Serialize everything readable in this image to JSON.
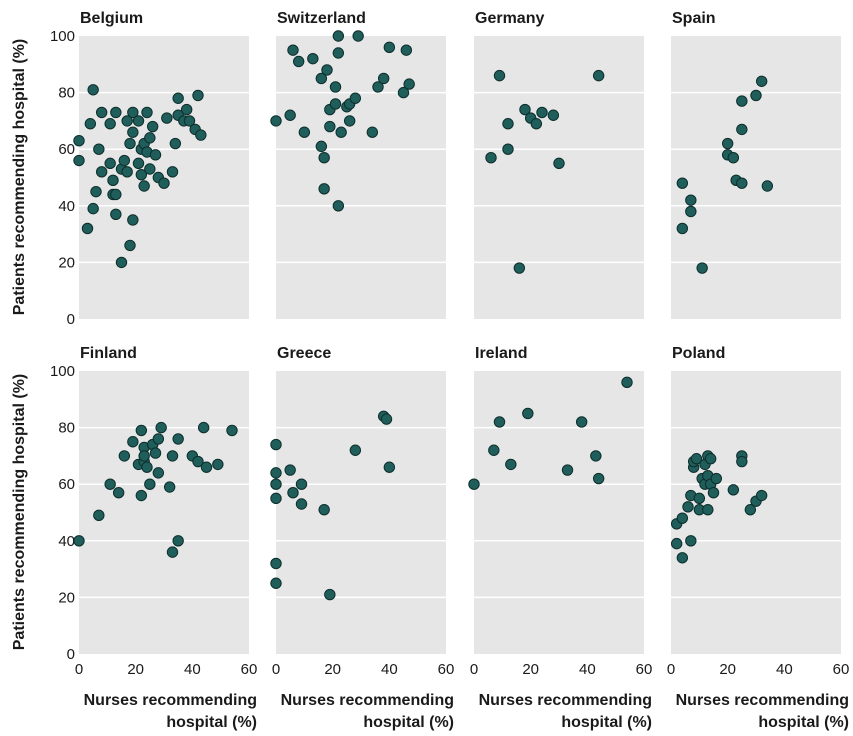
{
  "chart_data": {
    "type": "scatter",
    "ylabel": "Patients recommending hospital (%)",
    "xlabel_line1": "Nurses recommending",
    "xlabel_line2": "hospital (%)",
    "xlim": [
      0,
      60
    ],
    "ylim": [
      0,
      100
    ],
    "x_ticks": [
      0,
      20,
      40,
      60
    ],
    "y_ticks": [
      0,
      20,
      40,
      60,
      80,
      100
    ],
    "y_tick_labels": [
      "0",
      "20",
      "40",
      "60",
      "80",
      "100"
    ],
    "x_tick_labels": [
      "0",
      "20",
      "40",
      "60"
    ],
    "grid": true,
    "point_color": "#1f5e5a",
    "panel_background": "#e6e6e6",
    "panels": [
      {
        "country": "Belgium",
        "points": [
          [
            0,
            63
          ],
          [
            0,
            56
          ],
          [
            3,
            32
          ],
          [
            4,
            69
          ],
          [
            5,
            81
          ],
          [
            5,
            39
          ],
          [
            6,
            45
          ],
          [
            7,
            60
          ],
          [
            8,
            73
          ],
          [
            8,
            52
          ],
          [
            11,
            69
          ],
          [
            11,
            55
          ],
          [
            12,
            44
          ],
          [
            12,
            49
          ],
          [
            13,
            73
          ],
          [
            13,
            37
          ],
          [
            13,
            44
          ],
          [
            15,
            20
          ],
          [
            15,
            53
          ],
          [
            16,
            56
          ],
          [
            17,
            70
          ],
          [
            17,
            52
          ],
          [
            18,
            62
          ],
          [
            18,
            26
          ],
          [
            19,
            73
          ],
          [
            19,
            66
          ],
          [
            19,
            35
          ],
          [
            21,
            55
          ],
          [
            21,
            70
          ],
          [
            22,
            60
          ],
          [
            22,
            51
          ],
          [
            23,
            62
          ],
          [
            23,
            47
          ],
          [
            24,
            73
          ],
          [
            24,
            59
          ],
          [
            25,
            53
          ],
          [
            25,
            64
          ],
          [
            26,
            68
          ],
          [
            27,
            58
          ],
          [
            28,
            50
          ],
          [
            30,
            48
          ],
          [
            31,
            71
          ],
          [
            33,
            52
          ],
          [
            34,
            62
          ],
          [
            35,
            78
          ],
          [
            35,
            72
          ],
          [
            37,
            70
          ],
          [
            38,
            74
          ],
          [
            39,
            70
          ],
          [
            41,
            67
          ],
          [
            42,
            79
          ],
          [
            43,
            65
          ]
        ]
      },
      {
        "country": "Switzerland",
        "points": [
          [
            0,
            70
          ],
          [
            5,
            72
          ],
          [
            6,
            95
          ],
          [
            8,
            91
          ],
          [
            10,
            66
          ],
          [
            13,
            92
          ],
          [
            16,
            61
          ],
          [
            16,
            85
          ],
          [
            17,
            46
          ],
          [
            17,
            57
          ],
          [
            18,
            88
          ],
          [
            19,
            74
          ],
          [
            19,
            68
          ],
          [
            21,
            76
          ],
          [
            21,
            82
          ],
          [
            22,
            40
          ],
          [
            22,
            94
          ],
          [
            22,
            100
          ],
          [
            23,
            66
          ],
          [
            25,
            75
          ],
          [
            26,
            70
          ],
          [
            26,
            76
          ],
          [
            28,
            78
          ],
          [
            29,
            100
          ],
          [
            34,
            66
          ],
          [
            36,
            82
          ],
          [
            38,
            85
          ],
          [
            40,
            96
          ],
          [
            45,
            80
          ],
          [
            46,
            95
          ],
          [
            47,
            83
          ]
        ]
      },
      {
        "country": "Germany",
        "points": [
          [
            6,
            57
          ],
          [
            9,
            86
          ],
          [
            12,
            69
          ],
          [
            12,
            60
          ],
          [
            16,
            18
          ],
          [
            18,
            74
          ],
          [
            20,
            71
          ],
          [
            22,
            69
          ],
          [
            24,
            73
          ],
          [
            28,
            72
          ],
          [
            30,
            55
          ],
          [
            44,
            86
          ]
        ]
      },
      {
        "country": "Spain",
        "points": [
          [
            4,
            48
          ],
          [
            4,
            32
          ],
          [
            7,
            42
          ],
          [
            7,
            38
          ],
          [
            11,
            18
          ],
          [
            20,
            62
          ],
          [
            20,
            58
          ],
          [
            22,
            57
          ],
          [
            23,
            49
          ],
          [
            25,
            48
          ],
          [
            25,
            77
          ],
          [
            25,
            67
          ],
          [
            30,
            79
          ],
          [
            32,
            84
          ],
          [
            34,
            47
          ]
        ]
      },
      {
        "country": "Finland",
        "points": [
          [
            0,
            40
          ],
          [
            7,
            49
          ],
          [
            11,
            60
          ],
          [
            14,
            57
          ],
          [
            16,
            70
          ],
          [
            19,
            75
          ],
          [
            21,
            67
          ],
          [
            22,
            56
          ],
          [
            22,
            79
          ],
          [
            23,
            73
          ],
          [
            23,
            68
          ],
          [
            23,
            70
          ],
          [
            24,
            66
          ],
          [
            25,
            60
          ],
          [
            26,
            74
          ],
          [
            27,
            71
          ],
          [
            28,
            64
          ],
          [
            28,
            76
          ],
          [
            29,
            80
          ],
          [
            32,
            59
          ],
          [
            33,
            36
          ],
          [
            33,
            70
          ],
          [
            35,
            40
          ],
          [
            35,
            76
          ],
          [
            40,
            70
          ],
          [
            42,
            68
          ],
          [
            44,
            80
          ],
          [
            45,
            66
          ],
          [
            49,
            67
          ],
          [
            54,
            79
          ]
        ]
      },
      {
        "country": "Greece",
        "points": [
          [
            0,
            74
          ],
          [
            0,
            64
          ],
          [
            0,
            60
          ],
          [
            0,
            55
          ],
          [
            0,
            32
          ],
          [
            0,
            25
          ],
          [
            5,
            65
          ],
          [
            6,
            57
          ],
          [
            9,
            53
          ],
          [
            9,
            60
          ],
          [
            17,
            51
          ],
          [
            19,
            21
          ],
          [
            28,
            72
          ],
          [
            38,
            84
          ],
          [
            39,
            83
          ],
          [
            40,
            66
          ]
        ]
      },
      {
        "country": "Ireland",
        "points": [
          [
            0,
            60
          ],
          [
            7,
            72
          ],
          [
            9,
            82
          ],
          [
            13,
            67
          ],
          [
            19,
            85
          ],
          [
            33,
            65
          ],
          [
            38,
            82
          ],
          [
            43,
            70
          ],
          [
            44,
            62
          ],
          [
            54,
            96
          ]
        ]
      },
      {
        "country": "Poland",
        "points": [
          [
            2,
            39
          ],
          [
            2,
            46
          ],
          [
            4,
            48
          ],
          [
            4,
            34
          ],
          [
            6,
            52
          ],
          [
            7,
            56
          ],
          [
            7,
            40
          ],
          [
            8,
            66
          ],
          [
            8,
            68
          ],
          [
            9,
            69
          ],
          [
            10,
            55
          ],
          [
            10,
            51
          ],
          [
            11,
            62
          ],
          [
            12,
            60
          ],
          [
            12,
            67
          ],
          [
            13,
            51
          ],
          [
            13,
            63
          ],
          [
            13,
            70
          ],
          [
            14,
            69
          ],
          [
            14,
            60
          ],
          [
            15,
            57
          ],
          [
            16,
            62
          ],
          [
            22,
            58
          ],
          [
            25,
            70
          ],
          [
            25,
            68
          ],
          [
            28,
            51
          ],
          [
            30,
            54
          ],
          [
            32,
            56
          ]
        ]
      }
    ]
  }
}
